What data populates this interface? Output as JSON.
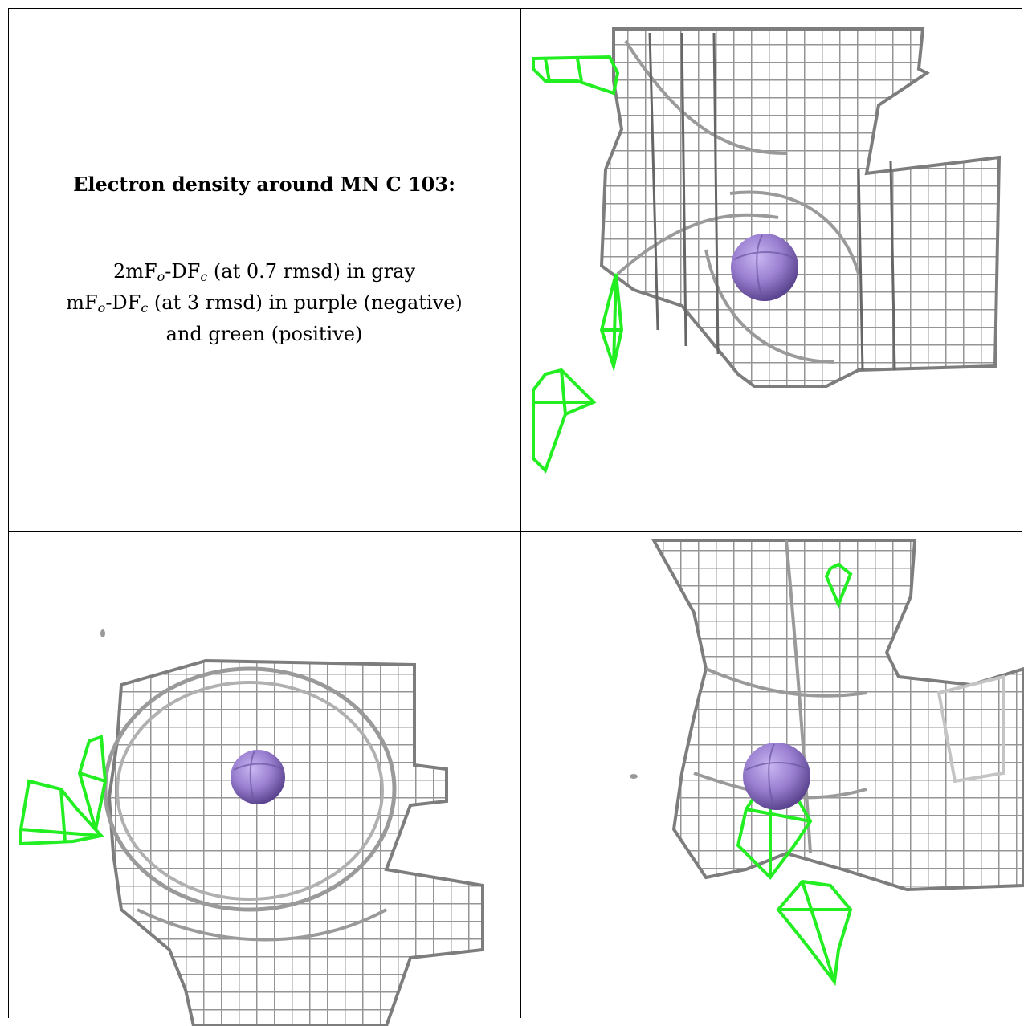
{
  "caption": {
    "title": "Electron density around MN C 103:",
    "line1_prefix": "2mF",
    "line1_sub1": "o",
    "line1_mid": "-DF",
    "line1_sub2": "c",
    "line1_suffix": " (at 0.7 rmsd) in gray",
    "line2_prefix": "mF",
    "line2_sub1": "o",
    "line2_mid": "-DF",
    "line2_sub2": "c",
    "line2_suffix": " (at 3 rmsd) in purple (negative)",
    "line3": "and green (positive)"
  },
  "colors": {
    "density_mesh": "#8a8a8a",
    "positive_mesh": "#22ee22",
    "atom": "#9a7fd0",
    "border": "#000000"
  },
  "panels": [
    {
      "name": "view-top-right",
      "atom": "MN"
    },
    {
      "name": "view-bottom-left",
      "atom": "MN"
    },
    {
      "name": "view-bottom-right",
      "atom": "MN"
    }
  ]
}
